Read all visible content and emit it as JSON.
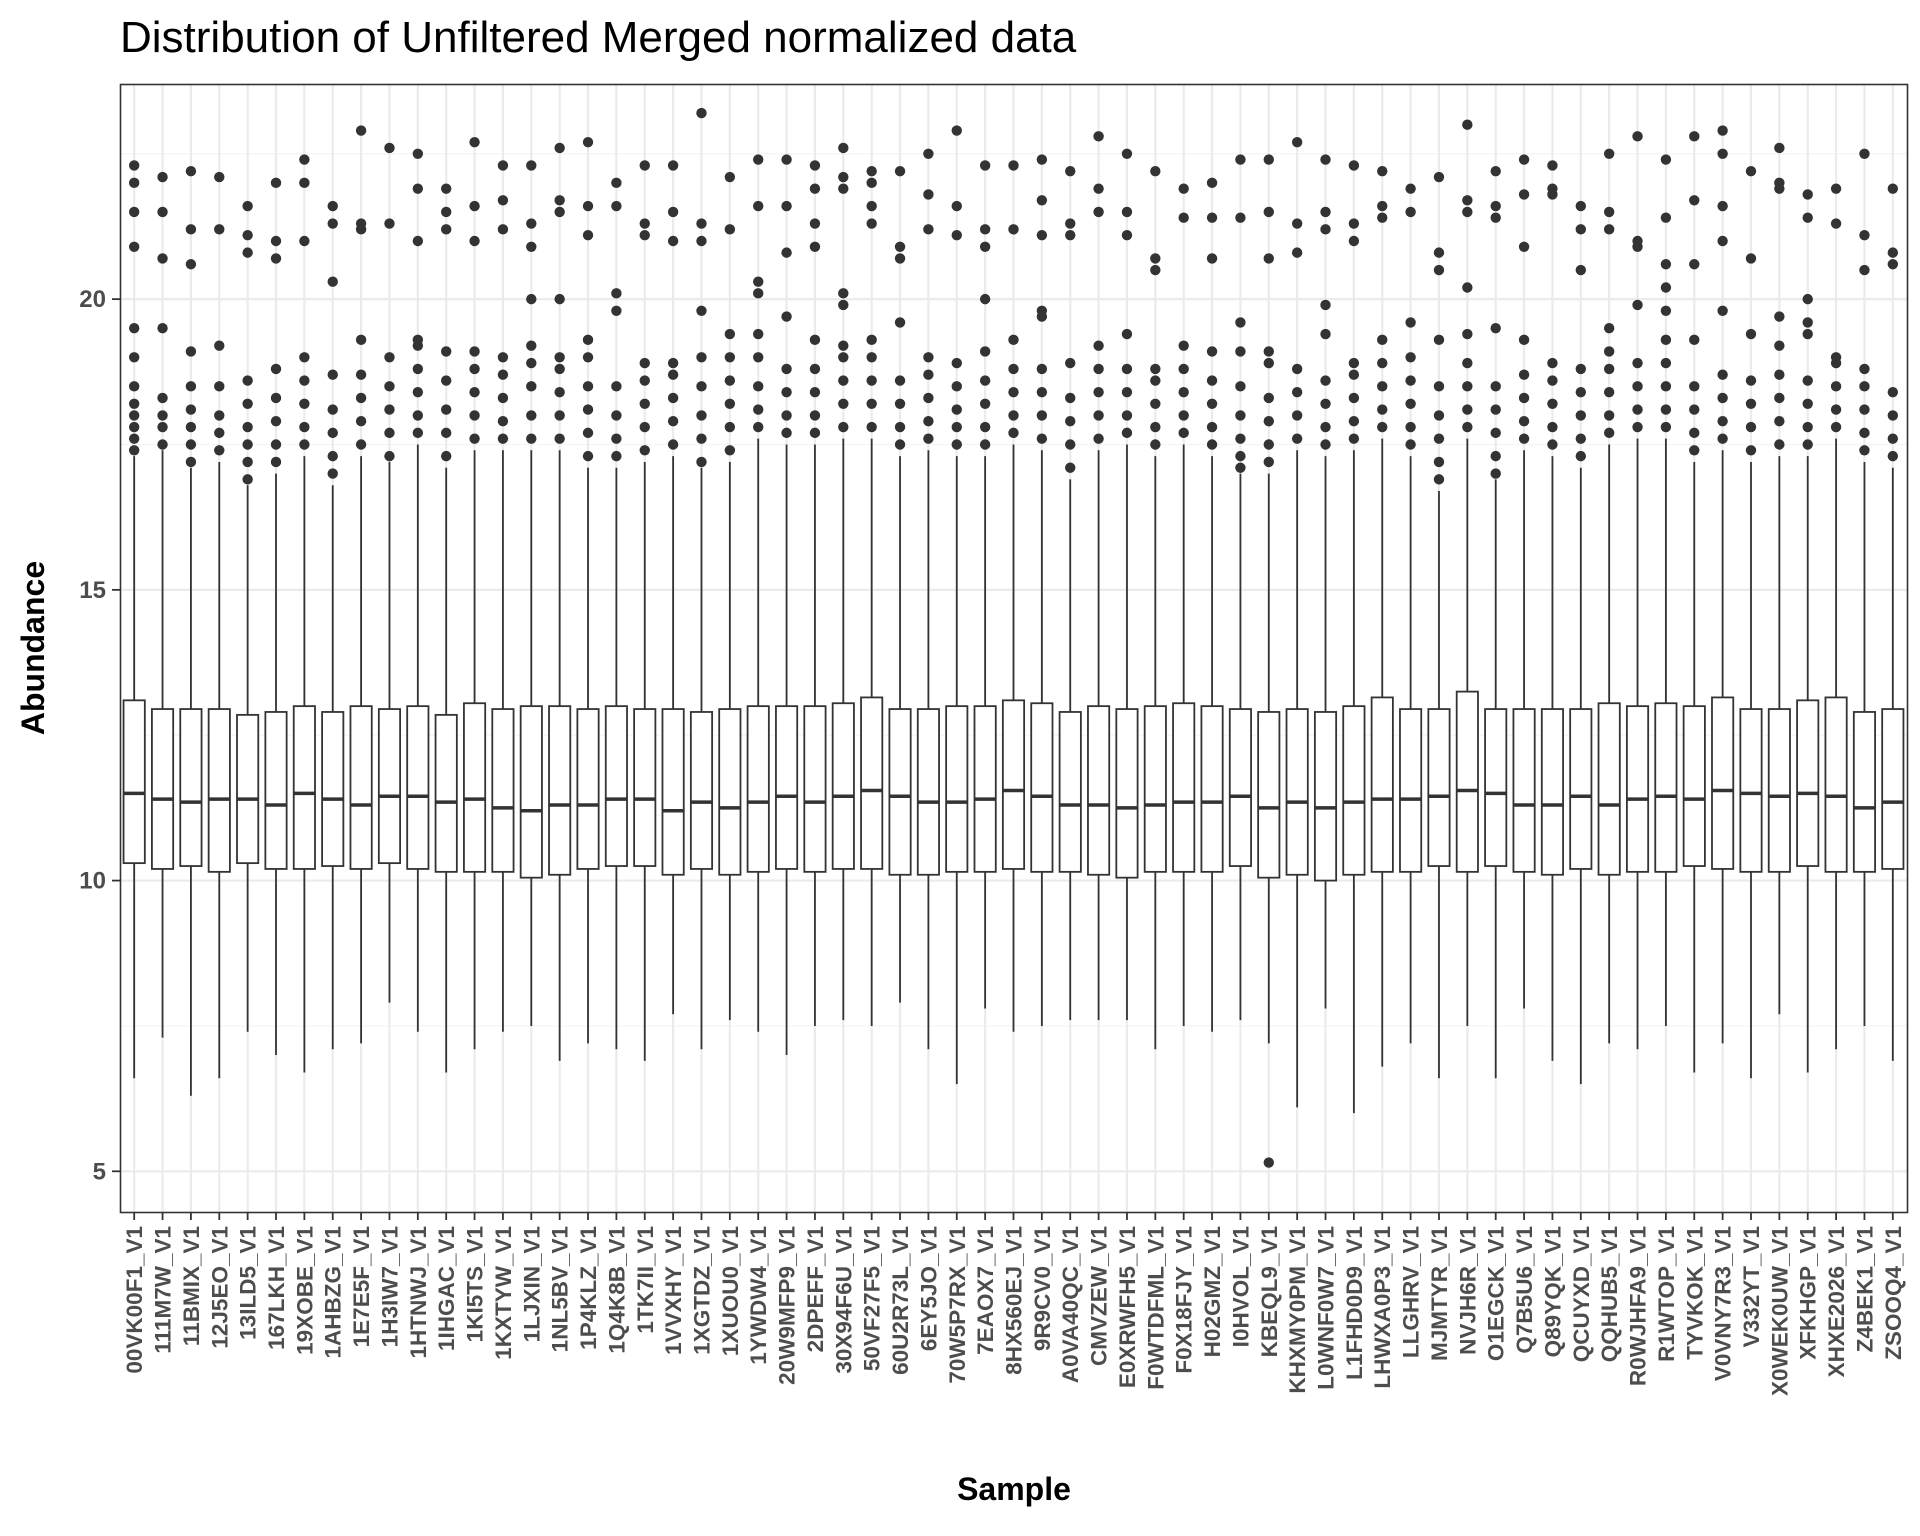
{
  "chart_data": {
    "type": "box",
    "title": "Distribution of Unfiltered Merged normalized data",
    "xlabel": "Sample",
    "ylabel": "Abundance",
    "ylim": [
      4.3,
      23.7
    ],
    "yticks": [
      5,
      10,
      15,
      20
    ],
    "grid": true,
    "legend": "none",
    "colors": {
      "box_fill": "#ffffff",
      "box_stroke": "#333333",
      "grid_major": "#ebebeb",
      "grid_minor": "#f4f4f4",
      "panel_border": "#333333"
    },
    "categories": [
      "00VK00F1_V1",
      "111M7W_V1",
      "11BMIX_V1",
      "12J5EO_V1",
      "13ILD5_V1",
      "167LKH_V1",
      "19XOBE_V1",
      "1AHBZG_V1",
      "1E7E5F_V1",
      "1H3IW7_V1",
      "1HTNWJ_V1",
      "1IHGAC_V1",
      "1KI5TS_V1",
      "1KXTYW_V1",
      "1LJXIN_V1",
      "1NL5BV_V1",
      "1P4KLZ_V1",
      "1Q4K8B_V1",
      "1TK7II_V1",
      "1VVXHY_V1",
      "1XGTDZ_V1",
      "1XUOU0_V1",
      "1YWDW4_V1",
      "20W9MFP9_V1",
      "2DPEFF_V1",
      "30X94F6U_V1",
      "50VF27F5_V1",
      "60U2R73L_V1",
      "6EY5JO_V1",
      "70W5P7RX_V1",
      "7EAOX7_V1",
      "8HX560EJ_V1",
      "9R9CV0_V1",
      "A0VA40QC_V1",
      "CMVZEW_V1",
      "E0XRWFH5_V1",
      "F0WTDFML_V1",
      "F0X18FJY_V1",
      "H02GMZ_V1",
      "I0HVOL_V1",
      "KBEQL9_V1",
      "KHXMY0PM_V1",
      "L0WNF0W7_V1",
      "L1FHD0D9_V1",
      "LHWXA0P3_V1",
      "LLGHRV_V1",
      "MJMTYR_V1",
      "NVJH6R_V1",
      "O1EGCK_V1",
      "Q7B5U6_V1",
      "Q89YQK_V1",
      "QCUYXD_V1",
      "QQHUB5_V1",
      "R0WJHFA9_V1",
      "R1WTOP_V1",
      "TYVKOK_V1",
      "V0VNY7R3_V1",
      "V332YT_V1",
      "X0WEK0UW_V1",
      "XFKHGP_V1",
      "XHXE2026_V1",
      "Z4BEK1_V1",
      "ZSOOQ4_V1"
    ],
    "boxes": [
      {
        "min": 6.6,
        "q1": 10.3,
        "median": 11.5,
        "q3": 13.1,
        "max": 17.3,
        "outliers": [
          17.4,
          17.6,
          17.8,
          18.0,
          18.2,
          18.5,
          19.0,
          19.5,
          20.9,
          21.5,
          22.0,
          22.3
        ]
      },
      {
        "min": 7.3,
        "q1": 10.2,
        "median": 11.4,
        "q3": 12.95,
        "max": 17.4,
        "outliers": [
          17.5,
          17.8,
          18.0,
          18.3,
          19.5,
          20.7,
          21.5,
          22.1
        ]
      },
      {
        "min": 6.3,
        "q1": 10.25,
        "median": 11.35,
        "q3": 12.95,
        "max": 17.1,
        "outliers": [
          17.2,
          17.5,
          17.8,
          18.1,
          18.5,
          19.1,
          20.6,
          21.2,
          22.2
        ]
      },
      {
        "min": 6.6,
        "q1": 10.15,
        "median": 11.4,
        "q3": 12.95,
        "max": 17.2,
        "outliers": [
          17.4,
          17.7,
          18.0,
          18.5,
          19.2,
          21.2,
          22.1
        ]
      },
      {
        "min": 7.4,
        "q1": 10.3,
        "median": 11.4,
        "q3": 12.85,
        "max": 16.8,
        "outliers": [
          16.9,
          17.2,
          17.5,
          17.8,
          18.2,
          18.6,
          20.8,
          21.1,
          21.6
        ]
      },
      {
        "min": 7.0,
        "q1": 10.2,
        "median": 11.3,
        "q3": 12.9,
        "max": 17.0,
        "outliers": [
          17.2,
          17.5,
          17.9,
          18.3,
          18.8,
          20.7,
          21.0,
          22.0
        ]
      },
      {
        "min": 6.7,
        "q1": 10.2,
        "median": 11.5,
        "q3": 13.0,
        "max": 17.3,
        "outliers": [
          17.5,
          17.8,
          18.2,
          18.6,
          19.0,
          21.0,
          22.0,
          22.4
        ]
      },
      {
        "min": 7.1,
        "q1": 10.25,
        "median": 11.4,
        "q3": 12.9,
        "max": 16.8,
        "outliers": [
          17.0,
          17.3,
          17.7,
          18.1,
          18.7,
          20.3,
          21.3,
          21.6
        ]
      },
      {
        "min": 7.2,
        "q1": 10.2,
        "median": 11.3,
        "q3": 13.0,
        "max": 17.3,
        "outliers": [
          17.5,
          17.9,
          18.3,
          18.7,
          19.3,
          21.2,
          21.3,
          22.9
        ]
      },
      {
        "min": 7.9,
        "q1": 10.3,
        "median": 11.45,
        "q3": 12.95,
        "max": 17.2,
        "outliers": [
          17.3,
          17.7,
          18.1,
          18.5,
          19.0,
          21.3,
          22.6
        ]
      },
      {
        "min": 7.4,
        "q1": 10.2,
        "median": 11.45,
        "q3": 13.0,
        "max": 17.5,
        "outliers": [
          17.7,
          18.0,
          18.4,
          18.8,
          19.2,
          19.3,
          21.0,
          21.9,
          22.5
        ]
      },
      {
        "min": 6.7,
        "q1": 10.15,
        "median": 11.35,
        "q3": 12.85,
        "max": 17.1,
        "outliers": [
          17.3,
          17.7,
          18.1,
          18.6,
          19.1,
          21.2,
          21.5,
          21.9
        ]
      },
      {
        "min": 7.1,
        "q1": 10.15,
        "median": 11.4,
        "q3": 13.05,
        "max": 17.4,
        "outliers": [
          17.6,
          18.0,
          18.4,
          18.8,
          19.1,
          21.0,
          21.6,
          22.7
        ]
      },
      {
        "min": 7.4,
        "q1": 10.15,
        "median": 11.25,
        "q3": 12.95,
        "max": 17.4,
        "outliers": [
          17.6,
          17.9,
          18.3,
          18.7,
          19.0,
          21.2,
          21.7,
          22.3
        ]
      },
      {
        "min": 7.5,
        "q1": 10.05,
        "median": 11.2,
        "q3": 13.0,
        "max": 17.4,
        "outliers": [
          17.6,
          18.0,
          18.5,
          18.9,
          19.2,
          20.0,
          20.9,
          21.3,
          22.3
        ]
      },
      {
        "min": 6.9,
        "q1": 10.1,
        "median": 11.3,
        "q3": 13.0,
        "max": 17.4,
        "outliers": [
          17.6,
          18.0,
          18.4,
          18.8,
          19.0,
          20.0,
          21.5,
          21.7,
          22.6
        ]
      },
      {
        "min": 7.2,
        "q1": 10.2,
        "median": 11.3,
        "q3": 12.95,
        "max": 17.1,
        "outliers": [
          17.3,
          17.7,
          18.1,
          18.5,
          19.0,
          19.3,
          21.1,
          21.6,
          22.7
        ]
      },
      {
        "min": 7.1,
        "q1": 10.25,
        "median": 11.4,
        "q3": 13.0,
        "max": 17.1,
        "outliers": [
          17.3,
          17.6,
          18.0,
          18.5,
          19.8,
          20.1,
          21.6,
          22.0
        ]
      },
      {
        "min": 6.9,
        "q1": 10.25,
        "median": 11.4,
        "q3": 12.95,
        "max": 17.2,
        "outliers": [
          17.4,
          17.8,
          18.2,
          18.6,
          18.9,
          21.1,
          21.3,
          22.3
        ]
      },
      {
        "min": 7.7,
        "q1": 10.1,
        "median": 11.2,
        "q3": 12.95,
        "max": 17.3,
        "outliers": [
          17.5,
          17.9,
          18.3,
          18.7,
          18.9,
          21.0,
          21.5,
          22.3
        ]
      },
      {
        "min": 7.1,
        "q1": 10.2,
        "median": 11.35,
        "q3": 12.9,
        "max": 17.1,
        "outliers": [
          17.2,
          17.6,
          18.0,
          18.5,
          19.0,
          19.8,
          21.0,
          21.3,
          23.2
        ]
      },
      {
        "min": 7.6,
        "q1": 10.1,
        "median": 11.25,
        "q3": 12.95,
        "max": 17.2,
        "outliers": [
          17.4,
          17.8,
          18.2,
          18.6,
          19.0,
          19.4,
          21.2,
          22.1
        ]
      },
      {
        "min": 7.4,
        "q1": 10.15,
        "median": 11.35,
        "q3": 13.0,
        "max": 17.6,
        "outliers": [
          17.8,
          18.1,
          18.5,
          19.0,
          19.4,
          20.1,
          20.3,
          21.6,
          22.4
        ]
      },
      {
        "min": 7.0,
        "q1": 10.2,
        "median": 11.45,
        "q3": 13.0,
        "max": 17.5,
        "outliers": [
          17.7,
          18.0,
          18.4,
          18.8,
          19.7,
          20.8,
          21.6,
          22.4
        ]
      },
      {
        "min": 7.5,
        "q1": 10.15,
        "median": 11.35,
        "q3": 13.0,
        "max": 17.5,
        "outliers": [
          17.7,
          18.0,
          18.4,
          18.8,
          19.3,
          20.9,
          21.3,
          21.9,
          22.3
        ]
      },
      {
        "min": 7.6,
        "q1": 10.2,
        "median": 11.45,
        "q3": 13.05,
        "max": 17.6,
        "outliers": [
          17.8,
          18.2,
          18.6,
          19.0,
          19.2,
          19.9,
          20.1,
          21.9,
          22.1,
          22.6
        ]
      },
      {
        "min": 7.5,
        "q1": 10.2,
        "median": 11.55,
        "q3": 13.15,
        "max": 17.6,
        "outliers": [
          17.8,
          18.2,
          18.6,
          19.0,
          19.3,
          21.3,
          21.6,
          22.0,
          22.2
        ]
      },
      {
        "min": 7.9,
        "q1": 10.1,
        "median": 11.45,
        "q3": 12.95,
        "max": 17.3,
        "outliers": [
          17.5,
          17.8,
          18.2,
          18.6,
          19.6,
          20.7,
          20.9,
          22.2
        ]
      },
      {
        "min": 7.1,
        "q1": 10.1,
        "median": 11.35,
        "q3": 12.95,
        "max": 17.4,
        "outliers": [
          17.6,
          17.9,
          18.3,
          18.7,
          19.0,
          21.2,
          21.8,
          22.5
        ]
      },
      {
        "min": 6.5,
        "q1": 10.15,
        "median": 11.35,
        "q3": 13.0,
        "max": 17.3,
        "outliers": [
          17.5,
          17.8,
          18.1,
          18.5,
          18.9,
          21.1,
          21.6,
          22.9
        ]
      },
      {
        "min": 7.8,
        "q1": 10.15,
        "median": 11.4,
        "q3": 13.0,
        "max": 17.3,
        "outliers": [
          17.5,
          17.8,
          18.2,
          18.6,
          19.1,
          20.0,
          20.9,
          21.2,
          22.3
        ]
      },
      {
        "min": 7.4,
        "q1": 10.2,
        "median": 11.55,
        "q3": 13.1,
        "max": 17.5,
        "outliers": [
          17.7,
          18.0,
          18.4,
          18.8,
          19.3,
          21.2,
          22.3
        ]
      },
      {
        "min": 7.5,
        "q1": 10.15,
        "median": 11.45,
        "q3": 13.05,
        "max": 17.4,
        "outliers": [
          17.6,
          18.0,
          18.4,
          18.8,
          19.7,
          19.8,
          21.1,
          21.7,
          22.4
        ]
      },
      {
        "min": 7.6,
        "q1": 10.15,
        "median": 11.3,
        "q3": 12.9,
        "max": 16.9,
        "outliers": [
          17.1,
          17.5,
          17.9,
          18.3,
          18.9,
          21.1,
          21.3,
          22.2
        ]
      },
      {
        "min": 7.6,
        "q1": 10.1,
        "median": 11.3,
        "q3": 13.0,
        "max": 17.4,
        "outliers": [
          17.6,
          18.0,
          18.4,
          18.8,
          19.2,
          21.5,
          21.9,
          22.8
        ]
      },
      {
        "min": 7.6,
        "q1": 10.05,
        "median": 11.25,
        "q3": 12.95,
        "max": 17.5,
        "outliers": [
          17.7,
          18.0,
          18.4,
          18.8,
          19.4,
          21.1,
          21.5,
          22.5
        ]
      },
      {
        "min": 7.1,
        "q1": 10.15,
        "median": 11.3,
        "q3": 13.0,
        "max": 17.3,
        "outliers": [
          17.5,
          17.8,
          18.2,
          18.6,
          18.8,
          20.5,
          20.7,
          22.2
        ]
      },
      {
        "min": 7.5,
        "q1": 10.15,
        "median": 11.35,
        "q3": 13.05,
        "max": 17.5,
        "outliers": [
          17.7,
          18.0,
          18.4,
          18.8,
          19.2,
          21.4,
          21.9
        ]
      },
      {
        "min": 7.4,
        "q1": 10.15,
        "median": 11.35,
        "q3": 13.0,
        "max": 17.3,
        "outliers": [
          17.5,
          17.8,
          18.2,
          18.6,
          19.1,
          20.7,
          21.4,
          22.0
        ]
      },
      {
        "min": 7.6,
        "q1": 10.25,
        "median": 11.45,
        "q3": 12.95,
        "max": 17.0,
        "outliers": [
          17.1,
          17.3,
          17.6,
          18.0,
          18.5,
          19.1,
          19.6,
          21.4,
          22.4
        ]
      },
      {
        "min": 7.2,
        "q1": 10.05,
        "median": 11.25,
        "q3": 12.9,
        "max": 17.0,
        "outliers": [
          5.15,
          17.2,
          17.5,
          17.9,
          18.3,
          18.9,
          19.1,
          20.7,
          21.5,
          22.4
        ]
      },
      {
        "min": 6.1,
        "q1": 10.1,
        "median": 11.35,
        "q3": 12.95,
        "max": 17.4,
        "outliers": [
          17.6,
          18.0,
          18.4,
          18.8,
          20.8,
          21.3,
          22.7
        ]
      },
      {
        "min": 7.8,
        "q1": 10.0,
        "median": 11.25,
        "q3": 12.9,
        "max": 17.3,
        "outliers": [
          17.5,
          17.8,
          18.2,
          18.6,
          19.4,
          19.9,
          21.2,
          21.5,
          22.4
        ]
      },
      {
        "min": 6.0,
        "q1": 10.1,
        "median": 11.35,
        "q3": 13.0,
        "max": 17.4,
        "outliers": [
          17.6,
          17.9,
          18.3,
          18.7,
          18.9,
          21.0,
          21.3,
          22.3
        ]
      },
      {
        "min": 6.8,
        "q1": 10.15,
        "median": 11.4,
        "q3": 13.15,
        "max": 17.6,
        "outliers": [
          17.8,
          18.1,
          18.5,
          18.9,
          19.3,
          21.4,
          21.6,
          22.2
        ]
      },
      {
        "min": 7.2,
        "q1": 10.15,
        "median": 11.4,
        "q3": 12.95,
        "max": 17.3,
        "outliers": [
          17.5,
          17.8,
          18.2,
          18.6,
          19.0,
          19.6,
          21.5,
          21.9
        ]
      },
      {
        "min": 6.6,
        "q1": 10.25,
        "median": 11.45,
        "q3": 12.95,
        "max": 16.7,
        "outliers": [
          16.9,
          17.2,
          17.6,
          18.0,
          18.5,
          19.3,
          20.5,
          20.8,
          22.1
        ]
      },
      {
        "min": 7.5,
        "q1": 10.15,
        "median": 11.55,
        "q3": 13.25,
        "max": 17.6,
        "outliers": [
          17.8,
          18.1,
          18.5,
          18.9,
          19.4,
          20.2,
          21.5,
          21.7,
          23.0
        ]
      },
      {
        "min": 6.6,
        "q1": 10.25,
        "median": 11.5,
        "q3": 12.95,
        "max": 16.9,
        "outliers": [
          17.0,
          17.3,
          17.7,
          18.1,
          18.5,
          19.5,
          21.4,
          21.6,
          22.2
        ]
      },
      {
        "min": 7.8,
        "q1": 10.15,
        "median": 11.3,
        "q3": 12.95,
        "max": 17.4,
        "outliers": [
          17.6,
          17.9,
          18.3,
          18.7,
          19.3,
          20.9,
          21.8,
          22.4
        ]
      },
      {
        "min": 6.9,
        "q1": 10.1,
        "median": 11.3,
        "q3": 12.95,
        "max": 17.3,
        "outliers": [
          17.5,
          17.8,
          18.2,
          18.6,
          18.9,
          21.8,
          21.9,
          22.3
        ]
      },
      {
        "min": 6.5,
        "q1": 10.2,
        "median": 11.45,
        "q3": 12.95,
        "max": 17.1,
        "outliers": [
          17.3,
          17.6,
          18.0,
          18.4,
          18.8,
          20.5,
          21.2,
          21.6
        ]
      },
      {
        "min": 7.2,
        "q1": 10.1,
        "median": 11.3,
        "q3": 13.05,
        "max": 17.5,
        "outliers": [
          17.7,
          18.0,
          18.4,
          18.8,
          19.1,
          19.5,
          21.2,
          21.5,
          22.5
        ]
      },
      {
        "min": 7.1,
        "q1": 10.15,
        "median": 11.4,
        "q3": 13.0,
        "max": 17.6,
        "outliers": [
          17.8,
          18.1,
          18.5,
          18.9,
          19.9,
          20.9,
          21.0,
          22.8
        ]
      },
      {
        "min": 7.5,
        "q1": 10.15,
        "median": 11.45,
        "q3": 13.05,
        "max": 17.6,
        "outliers": [
          17.8,
          18.1,
          18.5,
          18.9,
          19.3,
          19.8,
          20.2,
          20.6,
          21.4,
          22.4
        ]
      },
      {
        "min": 6.7,
        "q1": 10.25,
        "median": 11.4,
        "q3": 13.0,
        "max": 17.2,
        "outliers": [
          17.4,
          17.7,
          18.1,
          18.5,
          19.3,
          20.6,
          21.7,
          22.8
        ]
      },
      {
        "min": 7.2,
        "q1": 10.2,
        "median": 11.55,
        "q3": 13.15,
        "max": 17.4,
        "outliers": [
          17.6,
          17.9,
          18.3,
          18.7,
          19.8,
          21.0,
          21.6,
          22.5,
          22.9
        ]
      },
      {
        "min": 6.6,
        "q1": 10.15,
        "median": 11.5,
        "q3": 12.95,
        "max": 17.2,
        "outliers": [
          17.4,
          17.8,
          18.2,
          18.6,
          19.4,
          20.7,
          22.2
        ]
      },
      {
        "min": 7.7,
        "q1": 10.15,
        "median": 11.45,
        "q3": 12.95,
        "max": 17.3,
        "outliers": [
          17.5,
          17.9,
          18.3,
          18.7,
          19.2,
          19.7,
          21.9,
          22.0,
          22.6
        ]
      },
      {
        "min": 6.7,
        "q1": 10.25,
        "median": 11.5,
        "q3": 13.1,
        "max": 17.3,
        "outliers": [
          17.5,
          17.8,
          18.2,
          18.6,
          19.4,
          19.6,
          20.0,
          21.4,
          21.8
        ]
      },
      {
        "min": 7.1,
        "q1": 10.15,
        "median": 11.45,
        "q3": 13.15,
        "max": 17.6,
        "outliers": [
          17.8,
          18.1,
          18.5,
          18.9,
          19.0,
          21.3,
          21.9
        ]
      },
      {
        "min": 7.5,
        "q1": 10.15,
        "median": 11.25,
        "q3": 12.9,
        "max": 17.2,
        "outliers": [
          17.4,
          17.7,
          18.1,
          18.5,
          18.8,
          20.5,
          21.1,
          22.5
        ]
      },
      {
        "min": 6.9,
        "q1": 10.2,
        "median": 11.35,
        "q3": 12.95,
        "max": 17.1,
        "outliers": [
          17.3,
          17.6,
          18.0,
          18.4,
          20.6,
          20.8,
          21.9
        ]
      }
    ]
  }
}
